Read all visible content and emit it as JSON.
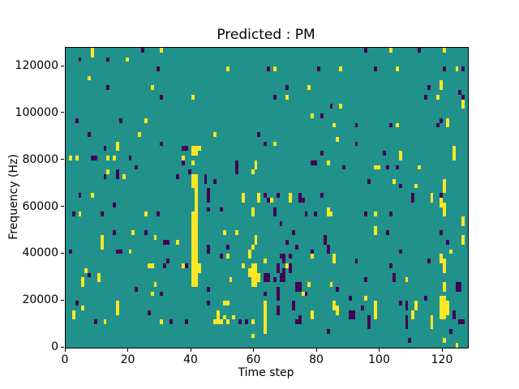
{
  "window": {
    "background": "#ffffff"
  },
  "chart_data": {
    "type": "heatmap",
    "title": "Predicted : PM",
    "xlabel": "Time step",
    "ylabel": "Frequency (Hz)",
    "x_ticks": [
      0,
      20,
      40,
      60,
      80,
      100,
      120
    ],
    "y_ticks": [
      0,
      20000,
      40000,
      60000,
      80000,
      100000,
      120000
    ],
    "x_range": [
      0,
      128
    ],
    "y_range": [
      0,
      128000
    ],
    "grid": {
      "cols": 128,
      "rows": 64,
      "hz_per_row": 2000
    },
    "legend": "none",
    "colors": {
      "mid": "#21918c",
      "high": "#fde725",
      "low": "#440154"
    },
    "value_meaning": {
      "mid": 0.5,
      "high": 1,
      "low": 0
    },
    "cells_high": [
      [
        8,
        63
      ],
      [
        8,
        62
      ],
      [
        19,
        61
      ],
      [
        30,
        63
      ],
      [
        7,
        57
      ],
      [
        27,
        55
      ],
      [
        40,
        53
      ],
      [
        25,
        48
      ],
      [
        23,
        45
      ],
      [
        16,
        43
      ],
      [
        16,
        42
      ],
      [
        1,
        40
      ],
      [
        3,
        40
      ],
      [
        13,
        40
      ],
      [
        15,
        40
      ],
      [
        37,
        40
      ],
      [
        37,
        39
      ],
      [
        13,
        37
      ],
      [
        18,
        36
      ],
      [
        8,
        32
      ],
      [
        40,
        42
      ],
      [
        40,
        41
      ],
      [
        40,
        39
      ],
      [
        40,
        36
      ],
      [
        40,
        35
      ],
      [
        40,
        34
      ],
      [
        40,
        28
      ],
      [
        40,
        27
      ],
      [
        40,
        26
      ],
      [
        40,
        25
      ],
      [
        40,
        24
      ],
      [
        40,
        23
      ],
      [
        40,
        22
      ],
      [
        40,
        21
      ],
      [
        40,
        20
      ],
      [
        40,
        19
      ],
      [
        40,
        18
      ],
      [
        40,
        17
      ],
      [
        40,
        16
      ],
      [
        40,
        15
      ],
      [
        40,
        14
      ],
      [
        40,
        13
      ],
      [
        41,
        42
      ],
      [
        41,
        41
      ],
      [
        41,
        36
      ],
      [
        41,
        35
      ],
      [
        41,
        34
      ],
      [
        41,
        33
      ],
      [
        41,
        32
      ],
      [
        41,
        31
      ],
      [
        41,
        30
      ],
      [
        41,
        29
      ],
      [
        41,
        28
      ],
      [
        41,
        27
      ],
      [
        41,
        26
      ],
      [
        41,
        25
      ],
      [
        41,
        24
      ],
      [
        41,
        23
      ],
      [
        41,
        22
      ],
      [
        41,
        21
      ],
      [
        41,
        20
      ],
      [
        41,
        19
      ],
      [
        41,
        18
      ],
      [
        41,
        17
      ],
      [
        41,
        16
      ],
      [
        41,
        15
      ],
      [
        41,
        14
      ],
      [
        41,
        13
      ],
      [
        42,
        42
      ],
      [
        42,
        17
      ],
      [
        42,
        16
      ],
      [
        51,
        59
      ],
      [
        66,
        59
      ],
      [
        77,
        55
      ],
      [
        70,
        53
      ],
      [
        78,
        49
      ],
      [
        85,
        47
      ],
      [
        47,
        45
      ],
      [
        66,
        43
      ],
      [
        60,
        39
      ],
      [
        60,
        38
      ],
      [
        59,
        37
      ],
      [
        83,
        39
      ],
      [
        56,
        32
      ],
      [
        61,
        32
      ],
      [
        71,
        32
      ],
      [
        103,
        63
      ],
      [
        120,
        63
      ],
      [
        87,
        59
      ],
      [
        105,
        59
      ],
      [
        124,
        59
      ],
      [
        119,
        56
      ],
      [
        119,
        55
      ],
      [
        118,
        53
      ],
      [
        87,
        51
      ],
      [
        126,
        52
      ],
      [
        126,
        51
      ],
      [
        105,
        47
      ],
      [
        121,
        48
      ],
      [
        121,
        47
      ],
      [
        86,
        44
      ],
      [
        106,
        41
      ],
      [
        106,
        40
      ],
      [
        98,
        38
      ],
      [
        99,
        38
      ],
      [
        112,
        38
      ],
      [
        104,
        35
      ],
      [
        111,
        34
      ],
      [
        116,
        32
      ],
      [
        123,
        42
      ],
      [
        123,
        41
      ],
      [
        123,
        40
      ],
      [
        120,
        35
      ],
      [
        120,
        34
      ],
      [
        120,
        33
      ],
      [
        4,
        28
      ],
      [
        25,
        28
      ],
      [
        21,
        24
      ],
      [
        11,
        23
      ],
      [
        11,
        22
      ],
      [
        11,
        21
      ],
      [
        28,
        23
      ],
      [
        35,
        22
      ],
      [
        20,
        20
      ],
      [
        26,
        17
      ],
      [
        27,
        17
      ],
      [
        37,
        17
      ],
      [
        6,
        16
      ],
      [
        10,
        15
      ],
      [
        10,
        14
      ],
      [
        5,
        14
      ],
      [
        5,
        13
      ],
      [
        28,
        13
      ],
      [
        27,
        11
      ],
      [
        5,
        8
      ],
      [
        2,
        7
      ],
      [
        2,
        6
      ],
      [
        16,
        9
      ],
      [
        16,
        8
      ],
      [
        16,
        7
      ],
      [
        12,
        5
      ],
      [
        30,
        5
      ],
      [
        56,
        31
      ],
      [
        61,
        31
      ],
      [
        65,
        31
      ],
      [
        71,
        31
      ],
      [
        59,
        29
      ],
      [
        59,
        28
      ],
      [
        83,
        29
      ],
      [
        83,
        28
      ],
      [
        84,
        28
      ],
      [
        50,
        24
      ],
      [
        54,
        24
      ],
      [
        60,
        23
      ],
      [
        60,
        22
      ],
      [
        59,
        21
      ],
      [
        51,
        19
      ],
      [
        58,
        20
      ],
      [
        58,
        19
      ],
      [
        63,
        18
      ],
      [
        78,
        19
      ],
      [
        56,
        17
      ],
      [
        70,
        17
      ],
      [
        52,
        14
      ],
      [
        77,
        13
      ],
      [
        84,
        13
      ],
      [
        75,
        11
      ],
      [
        50,
        9
      ],
      [
        51,
        9
      ],
      [
        47,
        5
      ],
      [
        48,
        7
      ],
      [
        48,
        6
      ],
      [
        48,
        5
      ],
      [
        49,
        5
      ],
      [
        50,
        6
      ],
      [
        51,
        5
      ],
      [
        53,
        6
      ],
      [
        59,
        5
      ],
      [
        59,
        2
      ],
      [
        78,
        7
      ],
      [
        78,
        6
      ],
      [
        59,
        17
      ],
      [
        59,
        16
      ],
      [
        59,
        15
      ],
      [
        59,
        14
      ],
      [
        59,
        13
      ],
      [
        60,
        17
      ],
      [
        60,
        16
      ],
      [
        60,
        15
      ],
      [
        60,
        14
      ],
      [
        60,
        13
      ],
      [
        58,
        16
      ],
      [
        58,
        15
      ],
      [
        61,
        15
      ],
      [
        61,
        14
      ],
      [
        63,
        9
      ],
      [
        63,
        8
      ],
      [
        63,
        7
      ],
      [
        63,
        6
      ],
      [
        63,
        5
      ],
      [
        63,
        4
      ],
      [
        63,
        3
      ],
      [
        116,
        31
      ],
      [
        119,
        31
      ],
      [
        119,
        30
      ],
      [
        120,
        30
      ],
      [
        120,
        29
      ],
      [
        120,
        28
      ],
      [
        98,
        28
      ],
      [
        126,
        27
      ],
      [
        126,
        26
      ],
      [
        98,
        25
      ],
      [
        98,
        24
      ],
      [
        126,
        23
      ],
      [
        126,
        22
      ],
      [
        122,
        20
      ],
      [
        119,
        19
      ],
      [
        119,
        18
      ],
      [
        120,
        18
      ],
      [
        85,
        19
      ],
      [
        85,
        18
      ],
      [
        120,
        17
      ],
      [
        120,
        16
      ],
      [
        108,
        14
      ],
      [
        120,
        13
      ],
      [
        120,
        12
      ],
      [
        95,
        10
      ],
      [
        85,
        9
      ],
      [
        85,
        8
      ],
      [
        86,
        8
      ],
      [
        86,
        7
      ],
      [
        98,
        9
      ],
      [
        98,
        8
      ],
      [
        98,
        7
      ],
      [
        98,
        6
      ],
      [
        111,
        9
      ],
      [
        111,
        8
      ],
      [
        110,
        7
      ],
      [
        110,
        6
      ],
      [
        116,
        6
      ],
      [
        116,
        5
      ],
      [
        116,
        4
      ],
      [
        119,
        10
      ],
      [
        119,
        9
      ],
      [
        119,
        8
      ],
      [
        119,
        7
      ],
      [
        119,
        6
      ],
      [
        120,
        10
      ],
      [
        120,
        9
      ],
      [
        120,
        8
      ],
      [
        120,
        7
      ],
      [
        120,
        6
      ],
      [
        121,
        9
      ],
      [
        121,
        8
      ],
      [
        121,
        7
      ],
      [
        120,
        1
      ],
      [
        124,
        0
      ]
    ],
    "cells_low": [
      [
        4,
        61
      ],
      [
        13,
        61
      ],
      [
        24,
        63
      ],
      [
        29,
        59
      ],
      [
        13,
        55
      ],
      [
        30,
        53
      ],
      [
        3,
        48
      ],
      [
        17,
        48
      ],
      [
        7,
        45
      ],
      [
        30,
        43
      ],
      [
        12,
        42
      ],
      [
        38,
        42
      ],
      [
        8,
        40
      ],
      [
        9,
        40
      ],
      [
        20,
        40
      ],
      [
        22,
        38
      ],
      [
        16,
        37
      ],
      [
        12,
        36
      ],
      [
        16,
        36
      ],
      [
        35,
        36
      ],
      [
        4,
        32
      ],
      [
        37,
        42
      ],
      [
        37,
        39
      ],
      [
        39,
        37
      ],
      [
        44,
        36
      ],
      [
        44,
        35
      ],
      [
        45,
        33
      ],
      [
        64,
        59
      ],
      [
        80,
        59
      ],
      [
        70,
        55
      ],
      [
        66,
        53
      ],
      [
        84,
        51
      ],
      [
        81,
        49
      ],
      [
        61,
        45
      ],
      [
        63,
        43
      ],
      [
        81,
        41
      ],
      [
        54,
        39
      ],
      [
        54,
        38
      ],
      [
        54,
        37
      ],
      [
        78,
        39
      ],
      [
        79,
        39
      ],
      [
        47,
        35
      ],
      [
        45,
        32
      ],
      [
        63,
        32
      ],
      [
        67,
        32
      ],
      [
        74,
        32
      ],
      [
        81,
        32
      ],
      [
        95,
        63
      ],
      [
        112,
        63
      ],
      [
        98,
        59
      ],
      [
        120,
        59
      ],
      [
        126,
        59
      ],
      [
        115,
        55
      ],
      [
        125,
        54
      ],
      [
        114,
        53
      ],
      [
        126,
        53
      ],
      [
        92,
        47
      ],
      [
        103,
        47
      ],
      [
        118,
        47
      ],
      [
        119,
        48
      ],
      [
        92,
        43
      ],
      [
        101,
        41
      ],
      [
        88,
        38
      ],
      [
        102,
        38
      ],
      [
        105,
        38
      ],
      [
        96,
        35
      ],
      [
        106,
        34
      ],
      [
        110,
        32
      ],
      [
        119,
        32
      ],
      [
        15,
        30
      ],
      [
        2,
        28
      ],
      [
        11,
        28
      ],
      [
        29,
        28
      ],
      [
        15,
        24
      ],
      [
        25,
        24
      ],
      [
        31,
        22
      ],
      [
        32,
        22
      ],
      [
        1,
        20
      ],
      [
        16,
        20
      ],
      [
        17,
        20
      ],
      [
        32,
        18
      ],
      [
        31,
        17
      ],
      [
        38,
        17
      ],
      [
        7,
        15
      ],
      [
        22,
        12
      ],
      [
        30,
        11
      ],
      [
        3,
        9
      ],
      [
        26,
        7
      ],
      [
        9,
        5
      ],
      [
        33,
        5
      ],
      [
        38,
        5
      ],
      [
        45,
        31
      ],
      [
        64,
        31
      ],
      [
        74,
        31
      ],
      [
        75,
        31
      ],
      [
        45,
        29
      ],
      [
        49,
        29
      ],
      [
        66,
        29
      ],
      [
        66,
        28
      ],
      [
        76,
        28
      ],
      [
        79,
        28
      ],
      [
        68,
        26
      ],
      [
        72,
        24
      ],
      [
        70,
        22
      ],
      [
        82,
        23
      ],
      [
        82,
        22
      ],
      [
        45,
        21
      ],
      [
        45,
        20
      ],
      [
        51,
        21
      ],
      [
        73,
        21
      ],
      [
        83,
        21
      ],
      [
        83,
        20
      ],
      [
        78,
        20
      ],
      [
        49,
        19
      ],
      [
        68,
        19
      ],
      [
        69,
        19
      ],
      [
        69,
        18
      ],
      [
        71,
        19
      ],
      [
        67,
        17
      ],
      [
        67,
        16
      ],
      [
        69,
        16
      ],
      [
        71,
        17
      ],
      [
        71,
        16
      ],
      [
        63,
        15
      ],
      [
        63,
        14
      ],
      [
        64,
        15
      ],
      [
        64,
        14
      ],
      [
        66,
        14
      ],
      [
        68,
        15
      ],
      [
        68,
        14
      ],
      [
        69,
        15
      ],
      [
        69,
        14
      ],
      [
        73,
        13
      ],
      [
        73,
        12
      ],
      [
        74,
        13
      ],
      [
        74,
        12
      ],
      [
        45,
        12
      ],
      [
        63,
        11
      ],
      [
        67,
        12
      ],
      [
        67,
        11
      ],
      [
        67,
        10
      ],
      [
        76,
        11
      ],
      [
        45,
        9
      ],
      [
        67,
        8
      ],
      [
        67,
        7
      ],
      [
        72,
        9
      ],
      [
        72,
        8
      ],
      [
        55,
        5
      ],
      [
        57,
        5
      ],
      [
        73,
        5
      ],
      [
        74,
        6
      ],
      [
        74,
        5
      ],
      [
        83,
        3
      ],
      [
        110,
        31
      ],
      [
        95,
        28
      ],
      [
        103,
        28
      ],
      [
        102,
        24
      ],
      [
        119,
        24
      ],
      [
        121,
        22
      ],
      [
        106,
        20
      ],
      [
        92,
        18
      ],
      [
        115,
        18
      ],
      [
        103,
        17
      ],
      [
        95,
        14
      ],
      [
        104,
        15
      ],
      [
        104,
        14
      ],
      [
        124,
        13
      ],
      [
        124,
        12
      ],
      [
        125,
        13
      ],
      [
        125,
        12
      ],
      [
        86,
        12
      ],
      [
        90,
        10
      ],
      [
        114,
        10
      ],
      [
        94,
        8
      ],
      [
        106,
        9
      ],
      [
        108,
        9
      ],
      [
        108,
        8
      ],
      [
        90,
        7
      ],
      [
        90,
        6
      ],
      [
        91,
        7
      ],
      [
        91,
        6
      ],
      [
        96,
        6
      ],
      [
        96,
        5
      ],
      [
        96,
        4
      ],
      [
        108,
        6
      ],
      [
        108,
        5
      ],
      [
        108,
        4
      ],
      [
        123,
        7
      ],
      [
        123,
        6
      ],
      [
        125,
        5
      ],
      [
        126,
        5
      ],
      [
        122,
        3
      ],
      [
        109,
        1
      ]
    ]
  }
}
